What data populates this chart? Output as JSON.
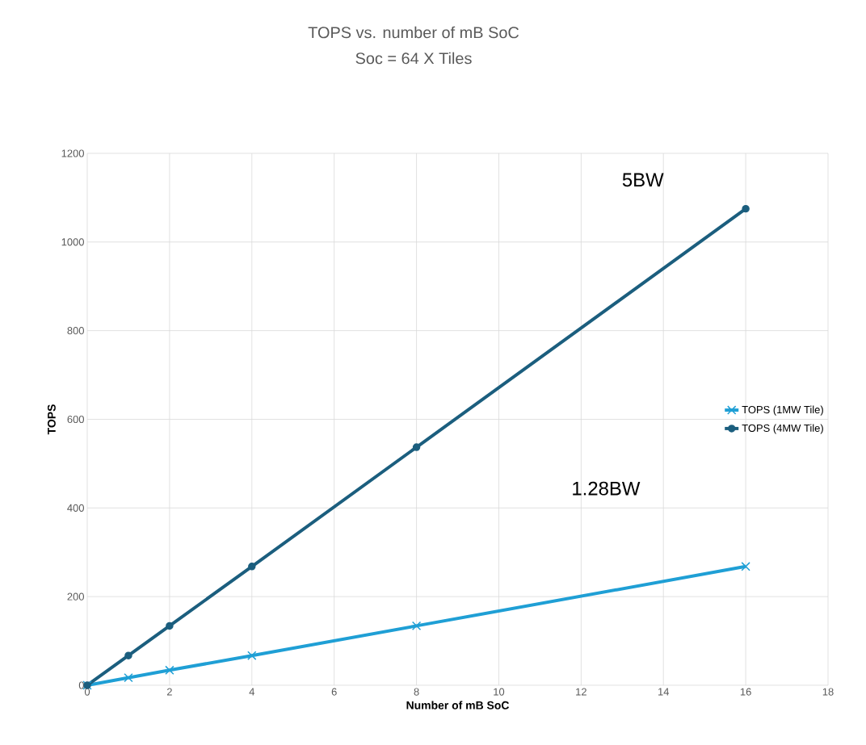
{
  "chart_data": {
    "type": "line",
    "title": "TOPS  vs. number of mB SoC",
    "subtitle": "Soc = 64 X Tiles",
    "xlabel": "Number of  mB SoC",
    "ylabel": "TOPS",
    "xlim": [
      0,
      18
    ],
    "xticks": [
      0,
      2,
      4,
      6,
      8,
      10,
      12,
      14,
      16,
      18
    ],
    "ylim": [
      0,
      1200
    ],
    "yticks": [
      0,
      200,
      400,
      600,
      800,
      1000,
      1200
    ],
    "x": [
      0,
      1,
      2,
      4,
      8,
      16
    ],
    "series": [
      {
        "name": "TOPS (1MW Tile)",
        "color": "#1f9fd5",
        "marker": "cross",
        "values": [
          0,
          17,
          34,
          67,
          134,
          268
        ]
      },
      {
        "name": "TOPS (4MW Tile)",
        "color": "#1b5e7e",
        "marker": "circle",
        "values": [
          0,
          67,
          134,
          268,
          537,
          1075
        ]
      }
    ],
    "annotations": [
      "5BW",
      "1.28BW"
    ],
    "grid": true,
    "legend": "right",
    "line_style": "solid"
  }
}
